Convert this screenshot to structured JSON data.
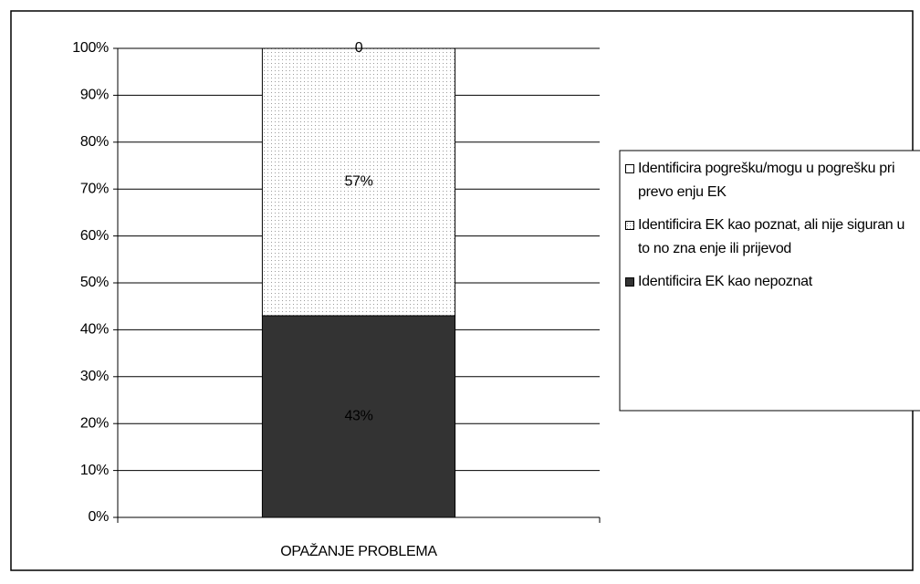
{
  "chart_data": {
    "type": "stacked_bar",
    "categories": [
      "OPAŽANJE PROBLEMA"
    ],
    "series": [
      {
        "name": "Identificira EK kao nepoznat",
        "color": "#333333",
        "values": [
          43
        ],
        "value_labels": [
          "43%"
        ]
      },
      {
        "name": "Identificira EK kao poznat, ali nije siguran u to no zna enje ili prijevod",
        "color": "#9a9a9a",
        "pattern": "dots",
        "values": [
          57
        ],
        "value_labels": [
          "57%"
        ]
      },
      {
        "name": "Identificira pogrešku/mogu u pogrešku pri prevo enju EK",
        "color": "#ffffff",
        "values": [
          0
        ]
      }
    ],
    "ylim": [
      0,
      100
    ],
    "yticks": [
      {
        "value": 0,
        "label": "0%"
      },
      {
        "value": 10,
        "label": "10%"
      },
      {
        "value": 20,
        "label": "20%"
      },
      {
        "value": 30,
        "label": "30%"
      },
      {
        "value": 40,
        "label": "40%"
      },
      {
        "value": 50,
        "label": "50%"
      },
      {
        "value": 60,
        "label": "60%"
      },
      {
        "value": 70,
        "label": "70%"
      },
      {
        "value": 80,
        "label": "80%"
      },
      {
        "value": 90,
        "label": "90%"
      },
      {
        "value": 100,
        "label": "100%"
      }
    ],
    "grid": true,
    "legend": "right"
  }
}
